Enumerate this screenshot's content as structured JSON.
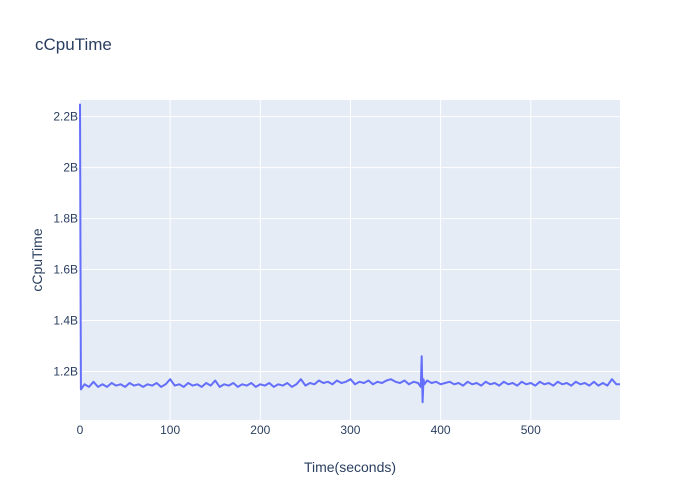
{
  "chart_data": {
    "type": "line",
    "title": "cCpuTime",
    "xlabel": "Time(seconds)",
    "ylabel": "cCpuTime",
    "xlim": [
      0,
      599
    ],
    "ylim": [
      1.01,
      2.265
    ],
    "grid": true,
    "legend": "none",
    "xticks": [
      0,
      100,
      200,
      300,
      400,
      500
    ],
    "xtick_labels": [
      "0",
      "100",
      "200",
      "300",
      "400",
      "500"
    ],
    "yticks": [
      1.2,
      1.4,
      1.6,
      1.8,
      2.0,
      2.2
    ],
    "ytick_labels": [
      "1.2B",
      "1.4B",
      "1.6B",
      "1.8B",
      "2B",
      "2.2B"
    ],
    "series": [
      {
        "color": "#636efa",
        "x": [
          0,
          1,
          5,
          10,
          15,
          20,
          25,
          30,
          35,
          40,
          45,
          50,
          55,
          60,
          65,
          70,
          75,
          80,
          85,
          90,
          95,
          100,
          105,
          110,
          115,
          120,
          125,
          130,
          135,
          140,
          145,
          150,
          155,
          160,
          165,
          170,
          175,
          180,
          185,
          190,
          195,
          200,
          205,
          210,
          215,
          220,
          225,
          230,
          235,
          240,
          245,
          250,
          255,
          260,
          265,
          270,
          275,
          280,
          285,
          290,
          295,
          300,
          305,
          310,
          315,
          320,
          325,
          330,
          335,
          340,
          345,
          350,
          355,
          360,
          365,
          370,
          375,
          378,
          379,
          380,
          381,
          382,
          385,
          390,
          395,
          400,
          405,
          410,
          415,
          420,
          425,
          430,
          435,
          440,
          445,
          450,
          455,
          460,
          465,
          470,
          475,
          480,
          485,
          490,
          495,
          500,
          505,
          510,
          515,
          520,
          525,
          530,
          535,
          540,
          545,
          550,
          555,
          560,
          565,
          570,
          575,
          580,
          585,
          590,
          595,
          599
        ],
        "y": [
          2.25,
          1.13,
          1.15,
          1.14,
          1.16,
          1.14,
          1.15,
          1.14,
          1.155,
          1.145,
          1.15,
          1.14,
          1.155,
          1.145,
          1.15,
          1.14,
          1.15,
          1.145,
          1.155,
          1.14,
          1.15,
          1.17,
          1.145,
          1.15,
          1.14,
          1.155,
          1.145,
          1.15,
          1.14,
          1.155,
          1.145,
          1.165,
          1.14,
          1.15,
          1.145,
          1.155,
          1.14,
          1.15,
          1.145,
          1.155,
          1.14,
          1.15,
          1.145,
          1.155,
          1.14,
          1.15,
          1.145,
          1.155,
          1.14,
          1.15,
          1.17,
          1.145,
          1.155,
          1.15,
          1.165,
          1.155,
          1.16,
          1.15,
          1.165,
          1.155,
          1.16,
          1.17,
          1.15,
          1.16,
          1.155,
          1.165,
          1.15,
          1.16,
          1.155,
          1.165,
          1.17,
          1.16,
          1.155,
          1.165,
          1.15,
          1.16,
          1.155,
          1.14,
          1.26,
          1.08,
          1.17,
          1.15,
          1.165,
          1.155,
          1.16,
          1.15,
          1.155,
          1.16,
          1.15,
          1.155,
          1.145,
          1.16,
          1.15,
          1.155,
          1.145,
          1.16,
          1.15,
          1.155,
          1.145,
          1.16,
          1.15,
          1.155,
          1.145,
          1.16,
          1.15,
          1.155,
          1.145,
          1.16,
          1.15,
          1.155,
          1.145,
          1.16,
          1.15,
          1.155,
          1.145,
          1.16,
          1.15,
          1.155,
          1.145,
          1.16,
          1.145,
          1.155,
          1.145,
          1.17,
          1.15,
          1.15
        ]
      }
    ]
  }
}
